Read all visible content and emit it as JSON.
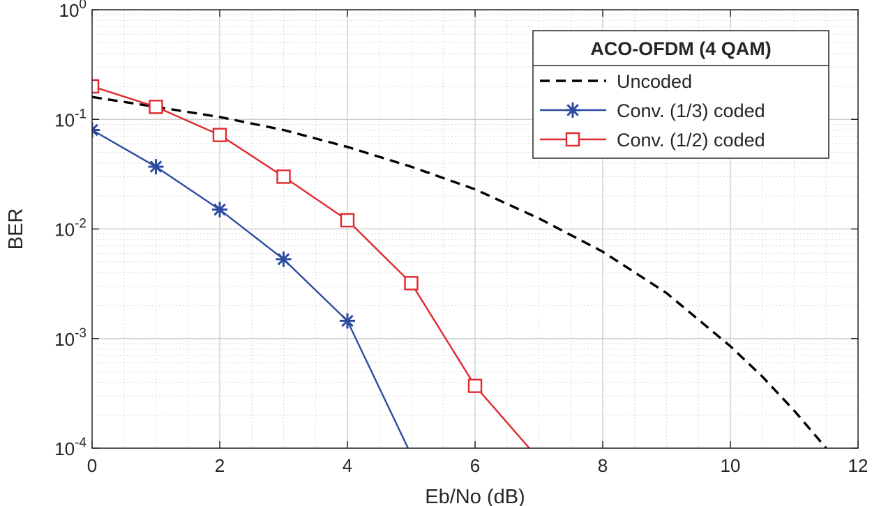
{
  "chart_data": {
    "type": "line",
    "xlabel": "Eb/No (dB)",
    "ylabel": "BER",
    "xlim": [
      0,
      12
    ],
    "ylim": [
      0.0001,
      1
    ],
    "yscale": "log",
    "grid": true,
    "minor_grid": true,
    "legend_placement": "top-right",
    "legend_title": "ACO-OFDM (4 QAM)",
    "x_ticks": [
      {
        "value": 0,
        "label": "0"
      },
      {
        "value": 2,
        "label": "2"
      },
      {
        "value": 4,
        "label": "4"
      },
      {
        "value": 6,
        "label": "6"
      },
      {
        "value": 8,
        "label": "8"
      },
      {
        "value": 10,
        "label": "10"
      },
      {
        "value": 12,
        "label": "12"
      }
    ],
    "y_ticks": [
      {
        "value": 1,
        "base": "10",
        "exp": "0"
      },
      {
        "value": 0.1,
        "base": "10",
        "exp": "-1"
      },
      {
        "value": 0.01,
        "base": "10",
        "exp": "-2"
      },
      {
        "value": 0.001,
        "base": "10",
        "exp": "-3"
      },
      {
        "value": 0.0001,
        "base": "10",
        "exp": "-4"
      }
    ],
    "series": [
      {
        "name": "Uncoded",
        "color": "#000000",
        "line_style": "dashed",
        "marker": "none",
        "x": [
          0,
          1,
          2,
          3,
          4,
          5,
          6,
          7,
          8,
          9,
          10,
          10.5,
          11,
          11.5
        ],
        "y": [
          0.16,
          0.13,
          0.105,
          0.08,
          0.056,
          0.037,
          0.023,
          0.0125,
          0.0062,
          0.0026,
          0.00085,
          0.00045,
          0.00022,
          0.0001
        ]
      },
      {
        "name": "Conv. (1/3) coded",
        "color": "#2c4ba0",
        "line_style": "solid",
        "marker": "asterisk",
        "x": [
          0,
          1,
          2,
          3,
          4,
          4.95
        ],
        "y": [
          0.08,
          0.037,
          0.015,
          0.0053,
          0.00145,
          0.0001
        ],
        "marker_count": 5
      },
      {
        "name": "Conv. (1/2) coded",
        "color": "#e0282e",
        "line_style": "solid",
        "marker": "square",
        "x": [
          0,
          1,
          2,
          3,
          4,
          5,
          6,
          6.85
        ],
        "y": [
          0.2,
          0.13,
          0.072,
          0.03,
          0.012,
          0.0032,
          0.00037,
          0.0001
        ],
        "marker_count": 7
      }
    ]
  }
}
